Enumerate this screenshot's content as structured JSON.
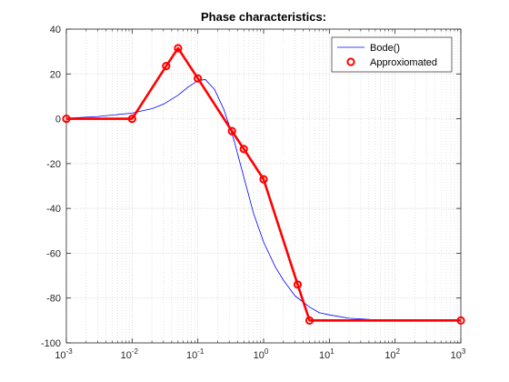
{
  "chart_data": {
    "type": "line",
    "title": "Phase characteristics:",
    "xlabel": "",
    "ylabel": "",
    "x_scale": "log",
    "xlim": [
      0.001,
      1000
    ],
    "ylim": [
      -100,
      40
    ],
    "x_ticks": [
      {
        "base": "10",
        "exp": "-3"
      },
      {
        "base": "10",
        "exp": "-2"
      },
      {
        "base": "10",
        "exp": "-1"
      },
      {
        "base": "10",
        "exp": "0"
      },
      {
        "base": "10",
        "exp": "1"
      },
      {
        "base": "10",
        "exp": "2"
      },
      {
        "base": "10",
        "exp": "3"
      }
    ],
    "y_ticks": [
      "40",
      "20",
      "0",
      "-20",
      "-40",
      "-60",
      "-80",
      "-100"
    ],
    "y_tick_values": [
      40,
      20,
      0,
      -20,
      -40,
      -60,
      -80,
      -100
    ],
    "grid": true,
    "minor_grid": true,
    "legend_position": "top-right",
    "series": [
      {
        "name": "Bode()",
        "color": "#0000ff",
        "style": "line",
        "x": [
          0.001,
          0.003,
          0.01,
          0.02,
          0.03,
          0.05,
          0.07,
          0.1,
          0.13,
          0.18,
          0.25,
          0.35,
          0.5,
          0.7,
          1,
          1.5,
          2,
          3,
          5,
          7,
          10,
          20,
          50,
          100,
          1000
        ],
        "y": [
          0.2,
          1,
          2.5,
          4.5,
          6.5,
          10.5,
          14,
          17,
          17.5,
          13,
          4,
          -9,
          -26,
          -42,
          -55,
          -66,
          -72,
          -79,
          -84,
          -86.5,
          -87.5,
          -89,
          -89.7,
          -90,
          -90
        ]
      },
      {
        "name": "Approxiomated",
        "color": "#ff0000",
        "style": "line-markers",
        "marker": "circle",
        "x": [
          0.001,
          0.01,
          0.033,
          0.05,
          0.1,
          0.33,
          0.5,
          1,
          3.3,
          5,
          1000
        ],
        "y": [
          0,
          0,
          23.5,
          31.5,
          18,
          -5.5,
          -13.5,
          -27,
          -74,
          -90,
          -90
        ]
      }
    ]
  }
}
